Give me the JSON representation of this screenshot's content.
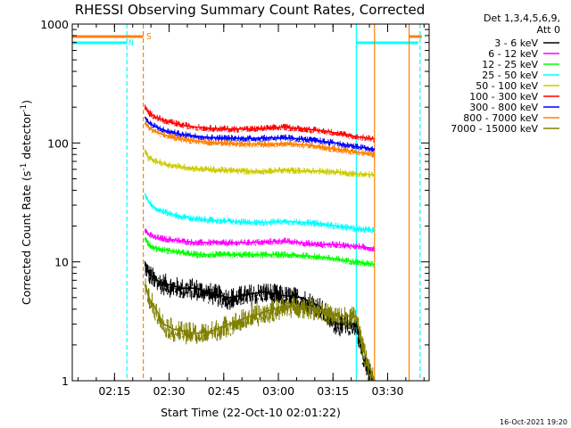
{
  "chart_data": {
    "type": "line",
    "title": "RHESSI Observing Summary Count Rates, Corrected",
    "xlabel": "Start Time (22-Oct-10 02:01:22)",
    "ylabel": "Corrected Count Rate (s^-1 detector^-1)",
    "ylabel_parts": {
      "base": "Corrected Count Rate (s",
      "sup1": "-1",
      "mid": " detector",
      "sup2": "-1",
      "end": ")"
    },
    "yscale": "log",
    "ylim": [
      1,
      1000
    ],
    "xlim_minutes": [
      2.0,
      100.0
    ],
    "x_ticks": [
      {
        "minute": 13.6,
        "label": "02:15"
      },
      {
        "minute": 28.6,
        "label": "02:30"
      },
      {
        "minute": 43.6,
        "label": "02:45"
      },
      {
        "minute": 58.6,
        "label": "03:00"
      },
      {
        "minute": 73.6,
        "label": "03:15"
      },
      {
        "minute": 88.6,
        "label": "03:30"
      }
    ],
    "y_ticks": [
      {
        "value": 1,
        "label": "1"
      },
      {
        "value": 10,
        "label": "10"
      },
      {
        "value": 100,
        "label": "100"
      },
      {
        "value": 1000,
        "label": "1000"
      }
    ],
    "legend": {
      "placement": "right",
      "header": [
        "Det 1,3,4,5,6,9,",
        "Att 0"
      ]
    },
    "series": [
      {
        "name": "3 - 6 keV",
        "color": "#000000",
        "x": [
          22,
          23,
          25,
          28,
          32,
          36,
          40,
          45,
          50,
          55,
          60,
          65,
          70,
          72,
          75,
          78,
          80,
          82,
          85
        ],
        "values": [
          9.5,
          8,
          7,
          6.5,
          6,
          6,
          5.5,
          5,
          5.3,
          5.6,
          5.2,
          5,
          4.2,
          3.5,
          3,
          3,
          3,
          1.5,
          1
        ]
      },
      {
        "name": "6 - 12 keV",
        "color": "#ff00ff",
        "x": [
          22,
          23,
          25,
          28,
          32,
          36,
          40,
          45,
          50,
          55,
          60,
          65,
          70,
          75,
          80,
          85
        ],
        "values": [
          19,
          17,
          16,
          15.5,
          15,
          14.5,
          14.5,
          14.5,
          14.5,
          14.7,
          15,
          14.5,
          14,
          14,
          13.5,
          13
        ]
      },
      {
        "name": "12 - 25 keV",
        "color": "#00ff00",
        "x": [
          22,
          23,
          25,
          28,
          32,
          36,
          40,
          45,
          50,
          55,
          60,
          65,
          70,
          75,
          80,
          85
        ],
        "values": [
          16,
          14,
          13,
          12.5,
          12,
          11.5,
          11.5,
          11.5,
          11.5,
          11.5,
          11.5,
          11.3,
          11,
          10.5,
          10,
          9.5
        ]
      },
      {
        "name": "25 - 50 keV",
        "color": "#00ffff",
        "x": [
          22,
          23,
          25,
          28,
          32,
          36,
          40,
          45,
          50,
          55,
          60,
          65,
          70,
          75,
          80,
          85
        ],
        "values": [
          37,
          32,
          28,
          26,
          24,
          23,
          22.5,
          22,
          21.5,
          21.5,
          22,
          21.5,
          21,
          20,
          19,
          18.5
        ]
      },
      {
        "name": "50 - 100 keV",
        "color": "#cccc00",
        "x": [
          22,
          23,
          25,
          28,
          32,
          36,
          40,
          45,
          50,
          55,
          60,
          65,
          70,
          75,
          80,
          85
        ],
        "values": [
          85,
          75,
          70,
          66,
          63,
          61,
          60,
          59,
          58,
          58,
          59,
          58.5,
          58,
          57,
          55,
          54
        ]
      },
      {
        "name": "100 - 300 keV",
        "color": "#ff0000",
        "x": [
          22,
          23,
          25,
          28,
          32,
          36,
          40,
          45,
          50,
          55,
          60,
          65,
          70,
          75,
          80,
          85
        ],
        "values": [
          200,
          180,
          165,
          152,
          142,
          136,
          133,
          131,
          131,
          133,
          136,
          132,
          127,
          121,
          113,
          108
        ]
      },
      {
        "name": "300 - 800 keV",
        "color": "#0000ff",
        "x": [
          22,
          23,
          25,
          28,
          32,
          36,
          40,
          45,
          50,
          55,
          60,
          65,
          70,
          75,
          80,
          85
        ],
        "values": [
          165,
          148,
          136,
          126,
          118,
          114,
          111,
          110,
          109,
          110,
          111,
          108,
          104,
          99,
          93,
          88
        ]
      },
      {
        "name": "800 - 7000 keV",
        "color": "#ff8000",
        "x": [
          22,
          23,
          25,
          28,
          32,
          36,
          40,
          45,
          50,
          55,
          60,
          65,
          70,
          75,
          80,
          85
        ],
        "values": [
          150,
          135,
          124,
          115,
          108,
          104,
          101,
          99,
          98,
          98,
          99,
          97,
          93,
          88,
          84,
          80
        ]
      },
      {
        "name": "7000 - 15000 keV",
        "color": "#808000",
        "x": [
          22,
          23,
          25,
          27,
          30,
          33,
          36,
          40,
          45,
          50,
          55,
          60,
          65,
          70,
          72,
          75,
          78,
          80,
          82,
          85
        ],
        "values": [
          6.5,
          5,
          4,
          3,
          2.7,
          2.6,
          2.5,
          2.6,
          3,
          3.4,
          3.8,
          4.2,
          4.3,
          4,
          3.7,
          3.5,
          3.5,
          3.5,
          1.8,
          1
        ]
      }
    ],
    "flags": {
      "saa": {
        "label": "S",
        "color": "#ff8000",
        "segments": [
          [
            2,
            21.5
          ],
          [
            94.5,
            98
          ]
        ]
      },
      "night": {
        "label": "N",
        "color": "#00ffff",
        "segments": [
          [
            2,
            17
          ],
          [
            80,
            97
          ]
        ]
      }
    },
    "vlines": [
      {
        "minute": 17,
        "color": "#00ffff",
        "style": "dashed"
      },
      {
        "minute": 21.5,
        "color": "#ff8000",
        "style": "dashed"
      },
      {
        "minute": 80,
        "color": "#00ffff",
        "style": "solid"
      },
      {
        "minute": 85,
        "color": "#ff8000",
        "style": "solid"
      },
      {
        "minute": 94.5,
        "color": "#ff8000",
        "style": "solid"
      },
      {
        "minute": 97.5,
        "color": "#00ffff",
        "style": "dashed"
      }
    ]
  },
  "timestamp": "16-Oct-2021 19:20"
}
